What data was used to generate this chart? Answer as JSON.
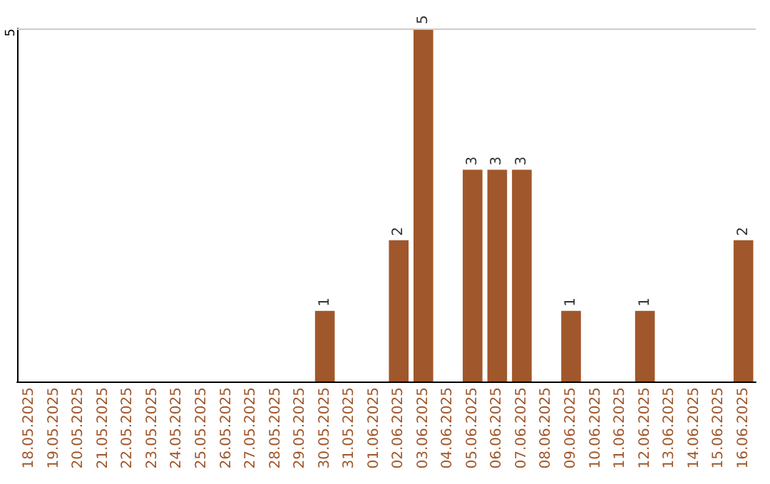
{
  "chart_data": {
    "type": "bar",
    "categories": [
      "18.05.2025",
      "19.05.2025",
      "20.05.2025",
      "21.05.2025",
      "22.05.2025",
      "23.05.2025",
      "24.05.2025",
      "25.05.2025",
      "26.05.2025",
      "27.05.2025",
      "28.05.2025",
      "29.05.2025",
      "30.05.2025",
      "31.05.2025",
      "01.06.2025",
      "02.06.2025",
      "03.06.2025",
      "04.06.2025",
      "05.06.2025",
      "06.06.2025",
      "07.06.2025",
      "08.06.2025",
      "09.06.2025",
      "10.06.2025",
      "11.06.2025",
      "12.06.2025",
      "13.06.2025",
      "14.06.2025",
      "15.06.2025",
      "16.06.2025"
    ],
    "values": [
      null,
      null,
      null,
      null,
      null,
      null,
      null,
      null,
      null,
      null,
      null,
      null,
      1,
      null,
      null,
      2,
      5,
      null,
      3,
      3,
      3,
      null,
      1,
      null,
      null,
      1,
      null,
      null,
      null,
      2
    ],
    "data_labels": true,
    "color": "#a0572b",
    "ref_lines": [
      {
        "axis": "y",
        "value": 5,
        "label": "5",
        "color": "#cccccc"
      }
    ]
  }
}
